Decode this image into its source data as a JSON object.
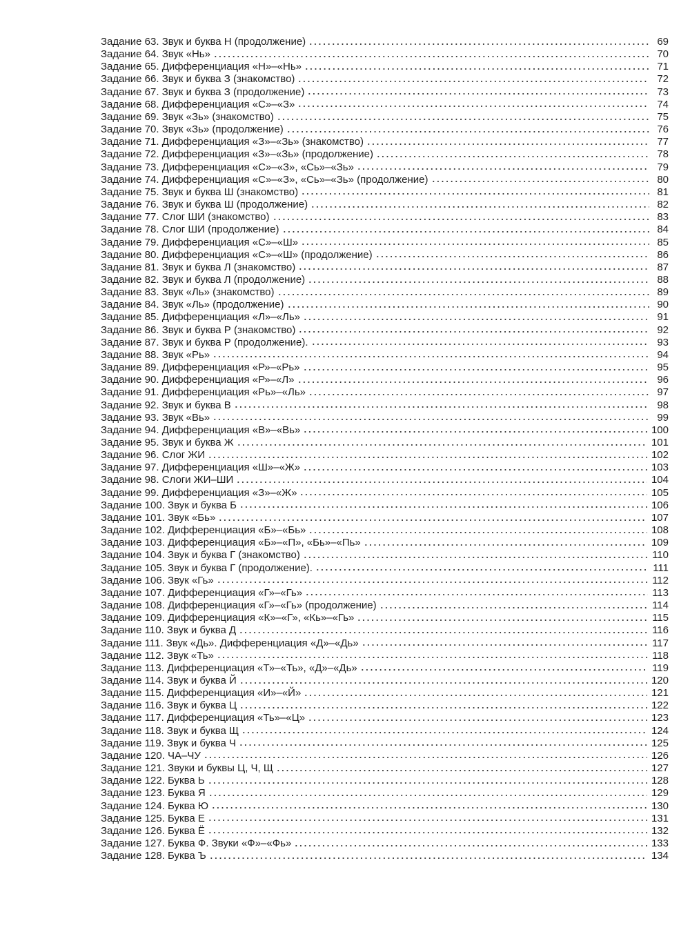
{
  "toc": {
    "entries": [
      {
        "title": "Задание 63. Звук и буква Н (продолжение)",
        "page": "69"
      },
      {
        "title": "Задание 64. Звук «Нь»",
        "page": "70"
      },
      {
        "title": "Задание 65. Дифференциация «Н»–«Нь»",
        "page": "71"
      },
      {
        "title": "Задание 66. Звук и буква З (знакомство)",
        "page": "72"
      },
      {
        "title": "Задание 67. Звук и буква З (продолжение)",
        "page": "73"
      },
      {
        "title": "Задание 68. Дифференциация «С»–«З»",
        "page": "74"
      },
      {
        "title": "Задание 69. Звук «Зь» (знакомство)",
        "page": "75"
      },
      {
        "title": "Задание 70. Звук «Зь» (продолжение)",
        "page": "76"
      },
      {
        "title": "Задание 71. Дифференциация «З»–«Зь» (знакомство)",
        "page": "77"
      },
      {
        "title": "Задание 72. Дифференциация «З»–«Зь» (продолжение)",
        "page": "78"
      },
      {
        "title": "Задание 73. Дифференциация «С»–«З», «Сь»–«Зь»",
        "page": "79"
      },
      {
        "title": "Задание 74. Дифференциация «С»–«З», «Сь»–«Зь» (продолжение)",
        "page": "80"
      },
      {
        "title": "Задание 75. Звук и буква Ш (знакомство)",
        "page": "81"
      },
      {
        "title": "Задание 76. Звук и буква Ш (продолжение)",
        "page": "82"
      },
      {
        "title": "Задание 77. Слог ШИ (знакомство)",
        "page": "83"
      },
      {
        "title": "Задание 78. Слог ШИ (продолжение)",
        "page": "84"
      },
      {
        "title": "Задание 79. Дифференциация «С»–«Ш»",
        "page": "85"
      },
      {
        "title": "Задание 80. Дифференциация «С»–«Ш» (продолжение)",
        "page": "86"
      },
      {
        "title": "Задание 81. Звук и буква Л (знакомство)",
        "page": "87"
      },
      {
        "title": "Задание 82. Звук и буква Л (продолжение)",
        "page": "88"
      },
      {
        "title": "Задание 83. Звук «Ль» (знакомство)",
        "page": "89"
      },
      {
        "title": "Задание 84. Звук «Ль» (продолжение)",
        "page": "90"
      },
      {
        "title": "Задание 85. Дифференциация «Л»–«Ль»",
        "page": "91"
      },
      {
        "title": "Задание 86. Звук и буква Р (знакомство)",
        "page": "92"
      },
      {
        "title": "Задание 87. Звук и буква Р (продолжение).",
        "page": "93"
      },
      {
        "title": "Задание 88. Звук «Рь»",
        "page": "94"
      },
      {
        "title": "Задание 89. Дифференциация «Р»–«Рь»",
        "page": "95"
      },
      {
        "title": "Задание 90. Дифференциация «Р»–«Л»",
        "page": "96"
      },
      {
        "title": "Задание 91. Дифференциация «Рь»–«Ль»",
        "page": "97"
      },
      {
        "title": "Задание 92. Звук и буква В",
        "page": "98"
      },
      {
        "title": "Задание 93. Звук «Вь»",
        "page": "99"
      },
      {
        "title": "Задание 94. Дифференциация «В»–«Вь»",
        "page": "100"
      },
      {
        "title": "Задание 95. Звук и буква Ж",
        "page": "101"
      },
      {
        "title": "Задание 96. Слог ЖИ",
        "page": "102"
      },
      {
        "title": "Задание 97. Дифференциация «Ш»–«Ж»",
        "page": "103"
      },
      {
        "title": "Задание 98. Слоги ЖИ–ШИ",
        "page": "104"
      },
      {
        "title": "Задание 99. Дифференциация «З»–«Ж»",
        "page": "105"
      },
      {
        "title": "Задание 100. Звук и буква Б",
        "page": "106"
      },
      {
        "title": "Задание 101. Звук «Бь»",
        "page": "107"
      },
      {
        "title": "Задание 102. Дифференциация «Б»–«Бь»",
        "page": "108"
      },
      {
        "title": "Задание 103. Дифференциация «Б»–«П», «Бь»–«Пь»",
        "page": "109"
      },
      {
        "title": "Задание 104. Звук и буква Г (знакомство)",
        "page": "110"
      },
      {
        "title": "Задание 105. Звук и буква Г (продолжение).",
        "page": "111"
      },
      {
        "title": "Задание 106. Звук «Гь»",
        "page": "112"
      },
      {
        "title": "Задание 107. Дифференциация «Г»–«Гь»",
        "page": "113"
      },
      {
        "title": "Задание 108. Дифференциация «Г»–«Гь» (продолжение)",
        "page": "114"
      },
      {
        "title": "Задание 109. Дифференциация «К»–«Г», «Кь»–«Гь»",
        "page": "115"
      },
      {
        "title": "Задание 110. Звук и буква Д",
        "page": "116"
      },
      {
        "title": "Задание 111. Звук «Дь». Дифференциация «Д»–«Дь»",
        "page": "117"
      },
      {
        "title": "Задание 112. Звук «Ть»",
        "page": "118"
      },
      {
        "title": "Задание 113. Дифференциация «Т»–«Ть», «Д»–«Дь»",
        "page": "119"
      },
      {
        "title": "Задание 114. Звук и буква Й",
        "page": "120"
      },
      {
        "title": "Задание 115. Дифференциация «И»–«Й»",
        "page": "121"
      },
      {
        "title": "Задание 116. Звук и буква Ц",
        "page": "122"
      },
      {
        "title": "Задание 117. Дифференциация «Ть»–«Ц»",
        "page": "123"
      },
      {
        "title": "Задание 118. Звук и буква Щ",
        "page": "124"
      },
      {
        "title": "Задание 119. Звук и буква Ч",
        "page": "125"
      },
      {
        "title": "Задание 120. ЧА–ЧУ",
        "page": "126"
      },
      {
        "title": "Задание 121. Звуки и буквы Ц, Ч, Щ",
        "page": "127"
      },
      {
        "title": "Задание 122. Буква Ь",
        "page": "128"
      },
      {
        "title": "Задание 123. Буква Я",
        "page": "129"
      },
      {
        "title": "Задание 124. Буква Ю",
        "page": "130"
      },
      {
        "title": "Задание 125. Буква Е",
        "page": "131"
      },
      {
        "title": "Задание 126. Буква Ё",
        "page": "132"
      },
      {
        "title": "Задание 127. Буква Ф. Звуки «Ф»–«Фь»",
        "page": "133"
      },
      {
        "title": "Задание 128. Буква Ъ",
        "page": "134"
      }
    ]
  }
}
